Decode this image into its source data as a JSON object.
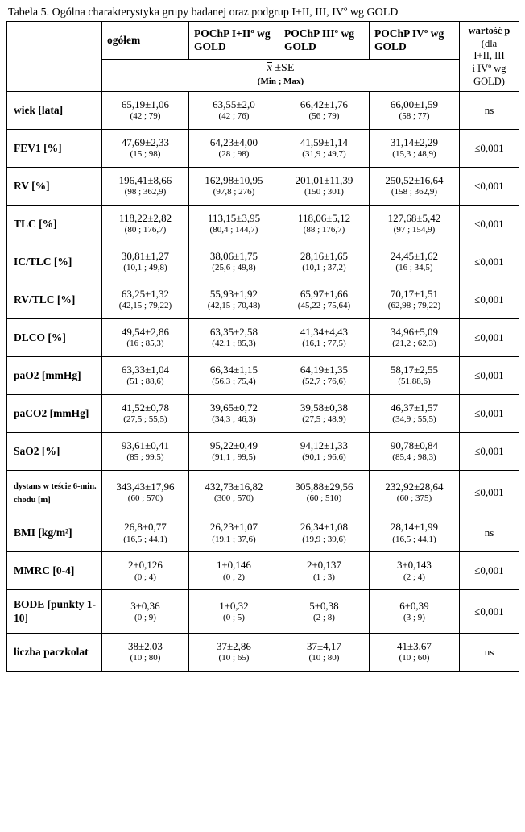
{
  "caption": "Tabela 5. Ogólna charakterystyka grupy badanej oraz podgrup I+II, III, IVº wg GOLD",
  "header": {
    "blank": "",
    "ogolem": "ogółem",
    "c1": "POChP I+IIº wg GOLD",
    "c2": "POChP IIIº wg GOLD",
    "c3": "POChP IVº wg GOLD",
    "p_l1": "wartość p",
    "p_l2": "(dla",
    "p_l3": "I+II, III",
    "p_l4": "i IVº wg",
    "p_l5": "GOLD)",
    "xse_main_pre": "x",
    "xse_main_post": " ±SE",
    "xse_sub": "(Min ; Max)"
  },
  "rows": [
    {
      "label": "wiek [lata]",
      "v0": "65,19±1,06",
      "r0": "(42 ; 79)",
      "v1": "63,55±2,0",
      "r1": "(42 ; 76)",
      "v2": "66,42±1,76",
      "r2": "(56 ; 79)",
      "v3": "66,00±1,59",
      "r3": "(58 ; 77)",
      "p": "ns"
    },
    {
      "label": "FEV1 [%]",
      "v0": "47,69±2,33",
      "r0": "(15 ; 98)",
      "v1": "64,23±4,00",
      "r1": "(28 ; 98)",
      "v2": "41,59±1,14",
      "r2": "(31,9 ; 49,7)",
      "v3": "31,14±2,29",
      "r3": "(15,3 ; 48,9)",
      "p": "≤0,001"
    },
    {
      "label": "RV [%]",
      "v0": "196,41±8,66",
      "r0": "(98 ; 362,9)",
      "v1": "162,98±10,95",
      "r1": "(97,8 ; 276)",
      "v2": "201,01±11,39",
      "r2": "(150 ; 301)",
      "v3": "250,52±16,64",
      "r3": "(158 ; 362,9)",
      "p": "≤0,001"
    },
    {
      "label": "TLC [%]",
      "v0": "118,22±2,82",
      "r0": "(80 ; 176,7)",
      "v1": "113,15±3,95",
      "r1": "(80,4 ; 144,7)",
      "v2": "118,06±5,12",
      "r2": "(88 ; 176,7)",
      "v3": "127,68±5,42",
      "r3": "(97 ; 154,9)",
      "p": "≤0,001"
    },
    {
      "label": "IC/TLC [%]",
      "v0": "30,81±1,27",
      "r0": "(10,1 ; 49,8)",
      "v1": "38,06±1,75",
      "r1": "(25,6 ; 49,8)",
      "v2": "28,16±1,65",
      "r2": "(10,1 ; 37,2)",
      "v3": "24,45±1,62",
      "r3": "(16 ; 34,5)",
      "p": "≤0,001"
    },
    {
      "label": "RV/TLC [%]",
      "v0": "63,25±1,32",
      "r0": "(42,15 ; 79,22)",
      "v1": "55,93±1,92",
      "r1": "(42,15 ; 70,48)",
      "v2": "65,97±1,66",
      "r2": "(45,22 ; 75,64)",
      "v3": "70,17±1,51",
      "r3": "(62,98 ; 79,22)",
      "p": "≤0,001"
    },
    {
      "label": "DLCO [%]",
      "v0": "49,54±2,86",
      "r0": "(16 ; 85,3)",
      "v1": "63,35±2,58",
      "r1": "(42,1 ; 85,3)",
      "v2": "41,34±4,43",
      "r2": "(16,1 ; 77,5)",
      "v3": "34,96±5,09",
      "r3": "(21,2 ; 62,3)",
      "p": "≤0,001"
    },
    {
      "label": "paO2 [mmHg]",
      "v0": "63,33±1,04",
      "r0": "(51 ; 88,6)",
      "v1": "66,34±1,15",
      "r1": "(56,3 ; 75,4)",
      "v2": "64,19±1,35",
      "r2": "(52,7 ; 76,6)",
      "v3": "58,17±2,55",
      "r3": "(51,88,6)",
      "p": "≤0,001"
    },
    {
      "label": "paCO2 [mmHg]",
      "v0": "41,52±0,78",
      "r0": "(27,5 ; 55,5)",
      "v1": "39,65±0,72",
      "r1": "(34,3 ; 46,3)",
      "v2": "39,58±0,38",
      "r2": "(27,5 ; 48,9)",
      "v3": "46,37±1,57",
      "r3": "(34,9 ; 55,5)",
      "p": "≤0,001"
    },
    {
      "label": "SaO2 [%]",
      "v0": "93,61±0,41",
      "r0": "(85 ; 99,5)",
      "v1": "95,22±0,49",
      "r1": "(91,1 ; 99,5)",
      "v2": "94,12±1,33",
      "r2": "(90,1 ; 96,6)",
      "v3": "90,78±0,84",
      "r3": "(85,4 ; 98,3)",
      "p": "≤0,001"
    },
    {
      "label": "dystans w teście 6-min. chodu [m]",
      "small": true,
      "v0": "343,43±17,96",
      "r0": "(60 ; 570)",
      "v1": "432,73±16,82",
      "r1": "(300 ; 570)",
      "v2": "305,88±29,56",
      "r2": "(60 ; 510)",
      "v3": "232,92±28,64",
      "r3": "(60 ; 375)",
      "p": "≤0,001"
    },
    {
      "label": "BMI [kg/m²]",
      "v0": "26,8±0,77",
      "r0": "(16,5 ; 44,1)",
      "v1": "26,23±1,07",
      "r1": "(19,1 ; 37,6)",
      "v2": "26,34±1,08",
      "r2": "(19,9 ; 39,6)",
      "v3": "28,14±1,99",
      "r3": "(16,5 ; 44,1)",
      "p": "ns"
    },
    {
      "label": "MMRC [0-4]",
      "v0": "2±0,126",
      "r0": "(0 ; 4)",
      "v1": "1±0,146",
      "r1": "(0 ; 2)",
      "v2": "2±0,137",
      "r2": "(1 ; 3)",
      "v3": "3±0,143",
      "r3": "(2 ; 4)",
      "p": "≤0,001"
    },
    {
      "label": "BODE [punkty 1-10]",
      "v0": "3±0,36",
      "r0": "(0 ; 9)",
      "v1": "1±0,32",
      "r1": "(0 ; 5)",
      "v2": "5±0,38",
      "r2": "(2 ; 8)",
      "v3": "6±0,39",
      "r3": "(3 ; 9)",
      "p": "≤0,001"
    },
    {
      "label": "liczba paczkolat",
      "v0": "38±2,03",
      "r0": "(10 ; 80)",
      "v1": "37±2,86",
      "r1": "(10 ; 65)",
      "v2": "37±4,17",
      "r2": "(10 ; 80)",
      "v3": "41±3,67",
      "r3": "(10 ; 60)",
      "p": "ns"
    }
  ]
}
